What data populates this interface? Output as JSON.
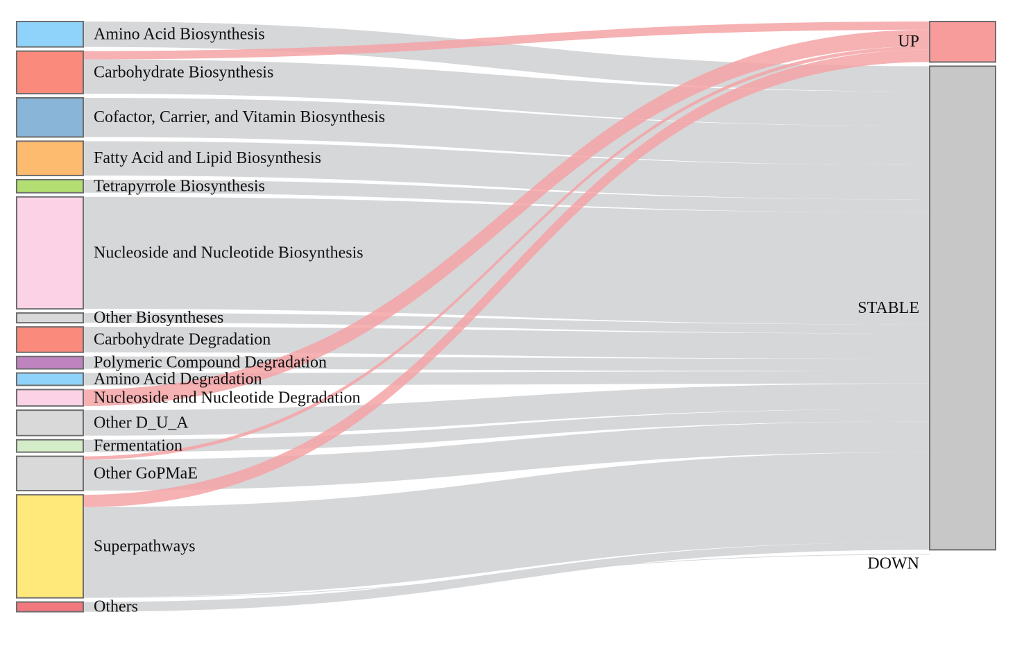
{
  "chart_data": {
    "type": "sankey",
    "source_nodes": [
      {
        "label": "Amino Acid Biosynthesis",
        "color": "#8fd3fa"
      },
      {
        "label": "Carbohydrate Biosynthesis",
        "color": "#f98a7c"
      },
      {
        "label": "Cofactor, Carrier, and Vitamin Biosynthesis",
        "color": "#89b5d8"
      },
      {
        "label": "Fatty Acid and Lipid Biosynthesis",
        "color": "#fdbb6f"
      },
      {
        "label": "Tetrapyrrole Biosynthesis",
        "color": "#b3df72"
      },
      {
        "label": "Nucleoside and Nucleotide Biosynthesis",
        "color": "#fbd2e6"
      },
      {
        "label": "Other Biosyntheses",
        "color": "#d9d9d9"
      },
      {
        "label": "Carbohydrate Degradation",
        "color": "#f98a7c"
      },
      {
        "label": "Polymeric Compound Degradation",
        "color": "#bf83c0"
      },
      {
        "label": "Amino Acid Degradation",
        "color": "#8fd3fa"
      },
      {
        "label": "Nucleoside and Nucleotide Degradation",
        "color": "#fbd2e6"
      },
      {
        "label": "Other D_U_A",
        "color": "#d9d9d9"
      },
      {
        "label": "Fermentation",
        "color": "#d4edc8"
      },
      {
        "label": "Other GoPMaE",
        "color": "#d9d9d9"
      },
      {
        "label": "Superpathways",
        "color": "#ffe97a"
      },
      {
        "label": "Others",
        "color": "#f0787e"
      }
    ],
    "target_nodes": [
      {
        "label": "UP",
        "color": "#f79b9b"
      },
      {
        "label": "STABLE",
        "color": "#c7c7c8"
      },
      {
        "label": "DOWN",
        "color": "#c7c7c8"
      }
    ],
    "links": [
      {
        "source": "Amino Acid Biosynthesis",
        "target": "STABLE",
        "value": 37
      },
      {
        "source": "Carbohydrate Biosynthesis",
        "target": "UP",
        "value": 12
      },
      {
        "source": "Carbohydrate Biosynthesis",
        "target": "STABLE",
        "value": 50
      },
      {
        "source": "Cofactor, Carrier, and Vitamin Biosynthesis",
        "target": "STABLE",
        "value": 57
      },
      {
        "source": "Fatty Acid and Lipid Biosynthesis",
        "target": "STABLE",
        "value": 50
      },
      {
        "source": "Tetrapyrrole Biosynthesis",
        "target": "STABLE",
        "value": 19
      },
      {
        "source": "Nucleoside and Nucleotide Biosynthesis",
        "target": "STABLE",
        "value": 163
      },
      {
        "source": "Other Biosyntheses",
        "target": "STABLE",
        "value": 13
      },
      {
        "source": "Carbohydrate Degradation",
        "target": "STABLE",
        "value": 37
      },
      {
        "source": "Polymeric Compound Degradation",
        "target": "STABLE",
        "value": 18
      },
      {
        "source": "Amino Acid Degradation",
        "target": "STABLE",
        "value": 18
      },
      {
        "source": "Nucleoside and Nucleotide Degradation",
        "target": "UP",
        "value": 24
      },
      {
        "source": "Other D_U_A",
        "target": "STABLE",
        "value": 37
      },
      {
        "source": "Fermentation",
        "target": "STABLE",
        "value": 18
      },
      {
        "source": "Other GoPMaE",
        "target": "UP",
        "value": 5
      },
      {
        "source": "Other GoPMaE",
        "target": "STABLE",
        "value": 45
      },
      {
        "source": "Superpathways",
        "target": "UP",
        "value": 18
      },
      {
        "source": "Superpathways",
        "target": "STABLE",
        "value": 131
      },
      {
        "source": "Superpathways",
        "target": "DOWN",
        "value": 1
      },
      {
        "source": "Others",
        "target": "STABLE",
        "value": 11
      }
    ],
    "link_colors": {
      "UP": "#f4a3a6",
      "STABLE": "#d4d5d7",
      "DOWN": "#d4d5d7"
    }
  }
}
